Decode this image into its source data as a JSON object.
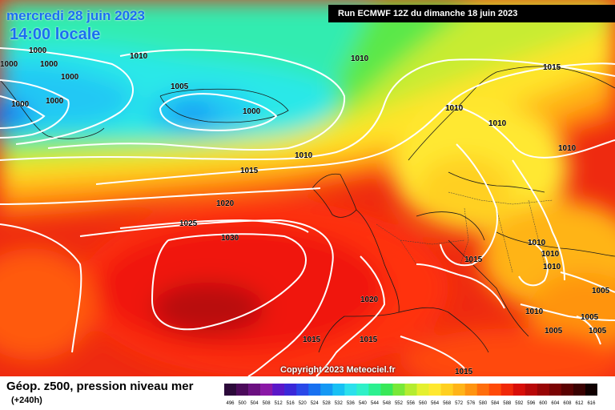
{
  "header": {
    "date": "mercredi 28 juin 2023",
    "local_time": "14:00 locale",
    "run": "Run ECMWF 12Z du dimanche 18 juin 2023"
  },
  "copyright": "Copyright 2023 Meteociel.fr",
  "footer": {
    "title": "Géop. z500, pression niveau mer",
    "subtitle": "(+240h)"
  },
  "scale": {
    "values": [
      "496",
      "500",
      "504",
      "508",
      "512",
      "516",
      "520",
      "524",
      "528",
      "532",
      "536",
      "540",
      "544",
      "548",
      "552",
      "556",
      "560",
      "564",
      "568",
      "572",
      "576",
      "580",
      "584",
      "588",
      "592",
      "596",
      "600",
      "604",
      "608",
      "612",
      "616"
    ],
    "colors": [
      "#2c0a3a",
      "#4b0a5a",
      "#6b1080",
      "#8a18a6",
      "#5a18c8",
      "#3a28d8",
      "#2a48e8",
      "#1870f0",
      "#1498f4",
      "#18c0f4",
      "#2ce0ec",
      "#30f0c8",
      "#2cf090",
      "#38e858",
      "#78e838",
      "#b4ec30",
      "#e4f030",
      "#ffe830",
      "#ffd020",
      "#ffb418",
      "#ff9410",
      "#ff6e0c",
      "#ff4a08",
      "#f02808",
      "#d80e08",
      "#b80808",
      "#980606",
      "#7a0404",
      "#5a0202",
      "#3a0202",
      "#100000"
    ]
  },
  "isobar_labels": [
    {
      "id": "a",
      "text": "1000"
    },
    {
      "id": "b",
      "text": "1000"
    },
    {
      "id": "c",
      "text": "1000"
    },
    {
      "id": "d",
      "text": "1000"
    },
    {
      "id": "e",
      "text": "1000"
    },
    {
      "id": "f",
      "text": "1000"
    },
    {
      "id": "g",
      "text": "1010"
    },
    {
      "id": "h",
      "text": "1005"
    },
    {
      "id": "i",
      "text": "1000"
    },
    {
      "id": "j",
      "text": "1010"
    },
    {
      "id": "k",
      "text": "1015"
    },
    {
      "id": "l",
      "text": "1010"
    },
    {
      "id": "m",
      "text": "1010"
    },
    {
      "id": "n",
      "text": "1010"
    },
    {
      "id": "o",
      "text": "1015"
    },
    {
      "id": "p",
      "text": "1010"
    },
    {
      "id": "q",
      "text": "1020"
    },
    {
      "id": "r",
      "text": "1025"
    },
    {
      "id": "s",
      "text": "1030"
    },
    {
      "id": "t",
      "text": "1010"
    },
    {
      "id": "u",
      "text": "1010"
    },
    {
      "id": "v",
      "text": "1015"
    },
    {
      "id": "w",
      "text": "1010"
    },
    {
      "id": "x",
      "text": "1020"
    },
    {
      "id": "y",
      "text": "1005"
    },
    {
      "id": "z",
      "text": "1010"
    },
    {
      "id": "aa",
      "text": "1005"
    },
    {
      "id": "ab",
      "text": "1005"
    },
    {
      "id": "ac",
      "text": "1015"
    },
    {
      "id": "ad",
      "text": "1015"
    },
    {
      "id": "ae",
      "text": "1015"
    },
    {
      "id": "af",
      "text": "1005"
    },
    {
      "id": "ag",
      "text": "1005"
    },
    {
      "id": "ah",
      "text": "1005"
    },
    {
      "id": "ai",
      "text": "5"
    }
  ]
}
